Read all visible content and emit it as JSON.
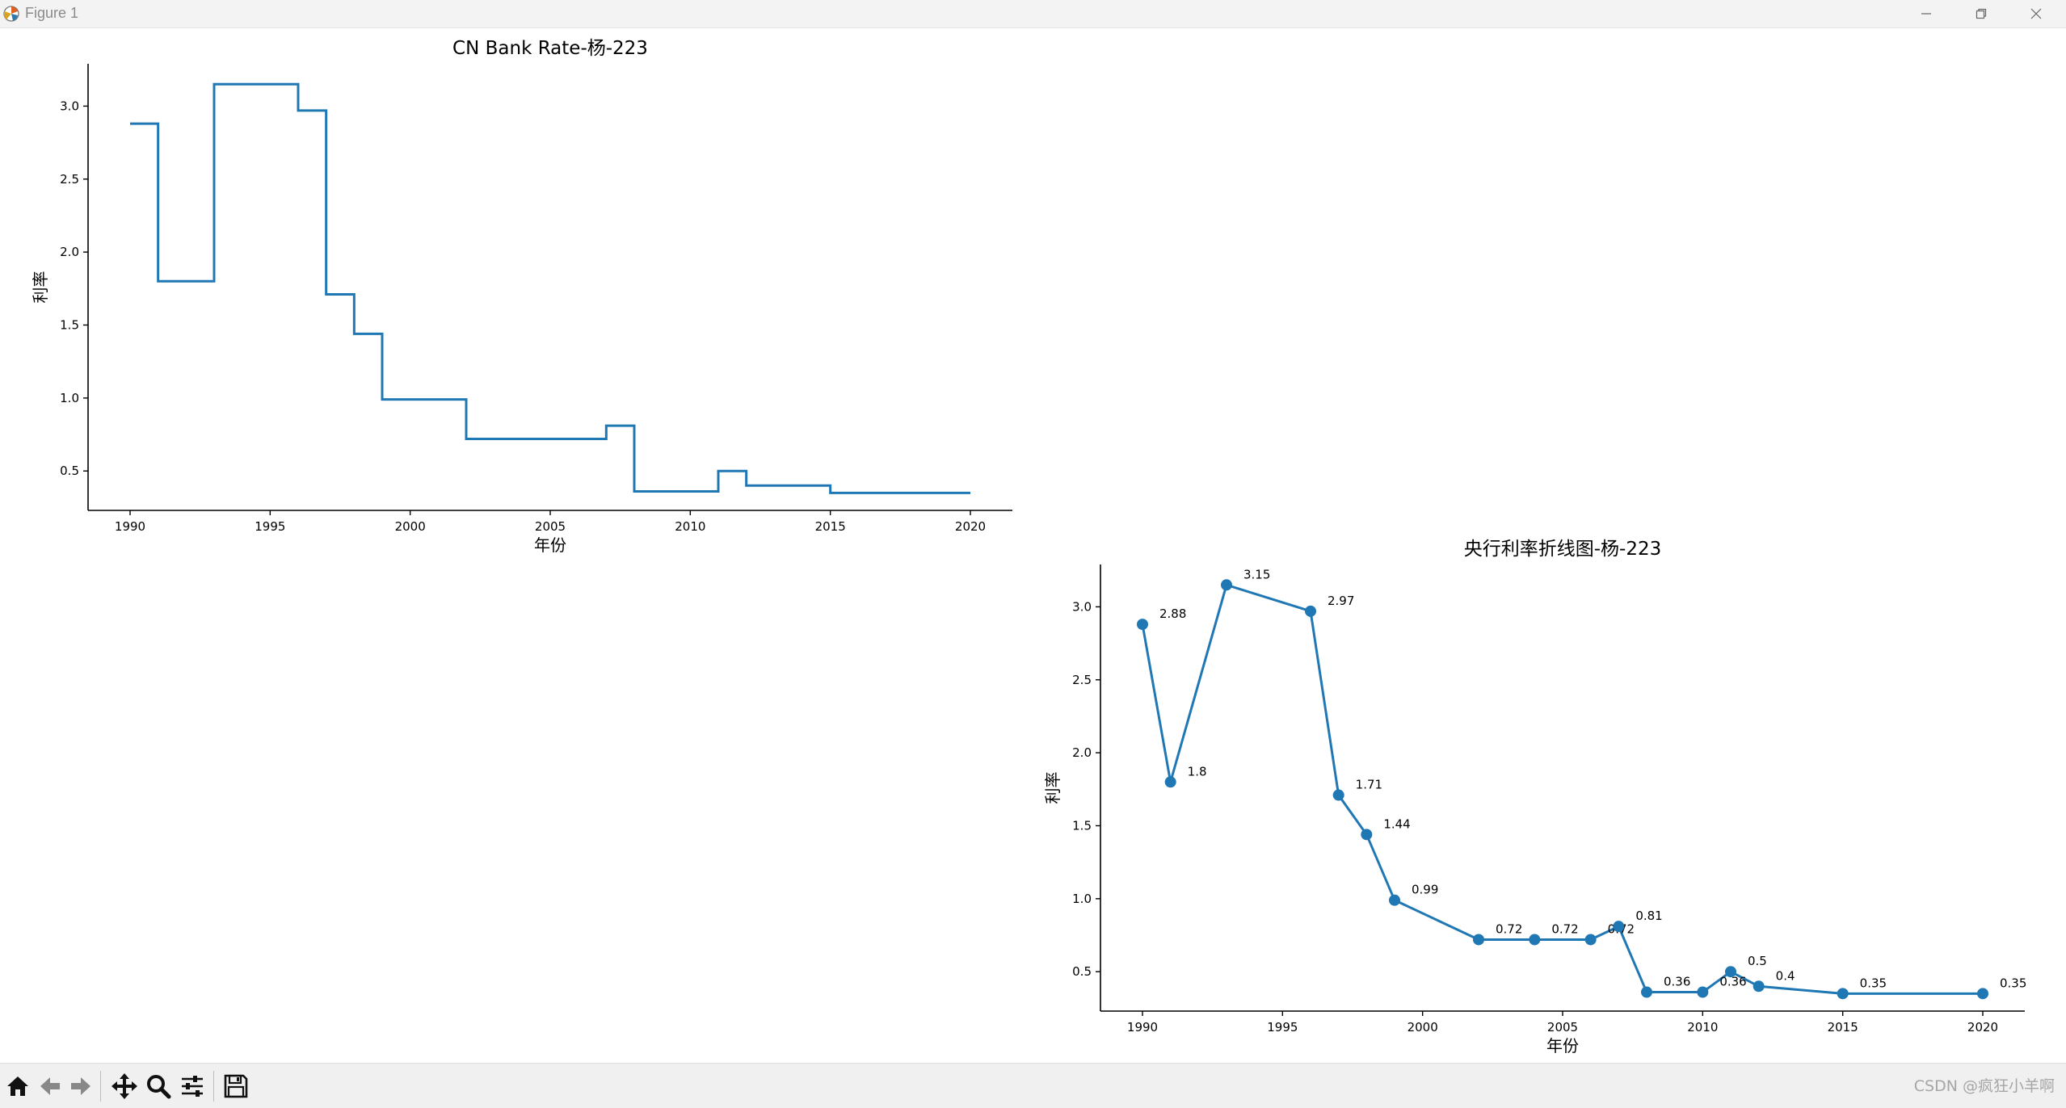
{
  "window": {
    "title": "Figure 1"
  },
  "toolbar": {
    "tools": [
      "home-icon",
      "back-arrow-icon",
      "forward-arrow-icon",
      "pan-move-icon",
      "zoom-magnifier-icon",
      "subplots-sliders-icon",
      "save-floppy-icon"
    ]
  },
  "watermark": "CSDN @疯狂小羊啊",
  "chart_data": [
    {
      "type": "line",
      "style": "step-post",
      "title": "CN Bank Rate-杨-223",
      "xlabel": "年份",
      "ylabel": "利率",
      "x": [
        1990,
        1991,
        1993,
        1996,
        1997,
        1998,
        1999,
        2002,
        2004,
        2006,
        2007,
        2008,
        2010,
        2011,
        2012,
        2015,
        2020
      ],
      "y": [
        2.88,
        1.8,
        3.15,
        2.97,
        1.71,
        1.44,
        0.99,
        0.72,
        0.72,
        0.72,
        0.81,
        0.36,
        0.36,
        0.5,
        0.4,
        0.35,
        0.35
      ],
      "xlim": [
        1988.5,
        2021.5
      ],
      "ylim": [
        0.23,
        3.29
      ],
      "xticks": [
        1990,
        1995,
        2000,
        2005,
        2010,
        2015,
        2020
      ],
      "yticks": [
        0.5,
        1.0,
        1.5,
        2.0,
        2.5,
        3.0
      ],
      "xtick_labels": [
        "1990",
        "1995",
        "2000",
        "2005",
        "2010",
        "2015",
        "2020"
      ],
      "ytick_labels": [
        "0.5",
        "1.0",
        "1.5",
        "2.0",
        "2.5",
        "3.0"
      ],
      "grid": false,
      "color": "#1f77b4"
    },
    {
      "type": "line",
      "style": "markers",
      "title": "央行利率折线图-杨-223",
      "xlabel": "年份",
      "ylabel": "利率",
      "x": [
        1990,
        1991,
        1993,
        1996,
        1997,
        1998,
        1999,
        2002,
        2004,
        2006,
        2007,
        2008,
        2010,
        2011,
        2012,
        2015,
        2020
      ],
      "y": [
        2.88,
        1.8,
        3.15,
        2.97,
        1.71,
        1.44,
        0.99,
        0.72,
        0.72,
        0.72,
        0.81,
        0.36,
        0.36,
        0.5,
        0.4,
        0.35,
        0.35
      ],
      "point_labels": [
        "2.88",
        "1.8",
        "3.15",
        "2.97",
        "1.71",
        "1.44",
        "0.99",
        "0.72",
        "0.72",
        "0.72",
        "0.81",
        "0.36",
        "0.36",
        "0.5",
        "0.4",
        "0.35",
        "0.35"
      ],
      "xlim": [
        1988.5,
        2021.5
      ],
      "ylim": [
        0.23,
        3.29
      ],
      "xticks": [
        1990,
        1995,
        2000,
        2005,
        2010,
        2015,
        2020
      ],
      "yticks": [
        0.5,
        1.0,
        1.5,
        2.0,
        2.5,
        3.0
      ],
      "xtick_labels": [
        "1990",
        "1995",
        "2000",
        "2005",
        "2010",
        "2015",
        "2020"
      ],
      "ytick_labels": [
        "0.5",
        "1.0",
        "1.5",
        "2.0",
        "2.5",
        "3.0"
      ],
      "grid": false,
      "color": "#1f77b4"
    }
  ]
}
